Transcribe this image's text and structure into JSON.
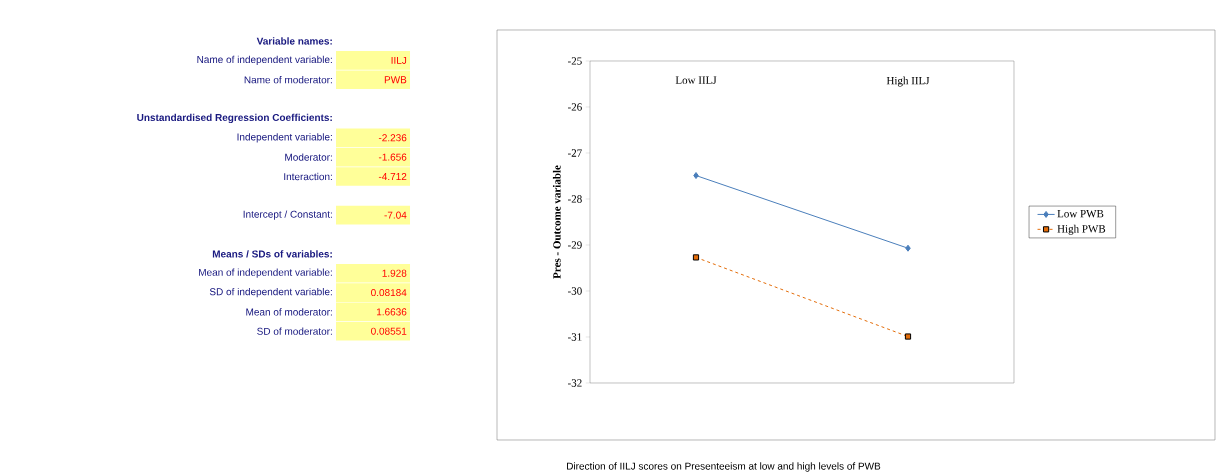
{
  "chart_data": [
    {
      "type": "other",
      "annotations": [
        "Variable names:",
        "Name of independent variable:",
        "IILJ",
        "Name of moderator:",
        "PWB",
        "Unstandardised Regression Coefficients:",
        "Independent variable:",
        "-2.236",
        "Moderator:",
        "-1.656",
        "Interaction:",
        "-4.712",
        "Intercept / Constant:",
        "-7.04",
        "Means / SDs of variables:",
        "Mean of independent variable:",
        "1.928",
        "SD of independent variable:",
        "0.08184",
        "Mean of moderator:",
        "1.6636",
        "SD of moderator:",
        "0.08551"
      ]
    },
    {
      "type": "line",
      "categories": [
        "Low IILJ",
        "High IILJ"
      ],
      "ylabel": "Pres - Outcome variable",
      "ylim": [
        -32,
        -25
      ],
      "yticks": [
        -32,
        -31,
        -30,
        -29,
        -28,
        -27,
        -26,
        -25
      ],
      "legend": "right",
      "annotations": [
        "Direction of IILJ scores on Presenteeism at low and high levels of PWB"
      ],
      "series": [
        {
          "name": "Low PWB",
          "color": "#4a7ebb",
          "values": [
            -27.49,
            -29.07
          ],
          "marker": "diamond",
          "line_style": "solid"
        },
        {
          "name": "High PWB",
          "color": "#e36c09",
          "values": [
            -29.27,
            -30.99
          ],
          "marker": "square",
          "line_style": "dashed"
        }
      ]
    }
  ]
}
